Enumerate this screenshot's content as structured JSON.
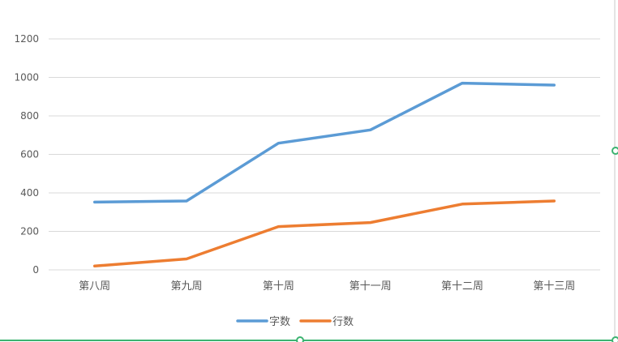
{
  "chart_data": {
    "type": "line",
    "categories": [
      "第八周",
      "第九周",
      "第十周",
      "第十一周",
      "第十二周",
      "第十三周"
    ],
    "series": [
      {
        "name": "字数",
        "color": "#5b9bd5",
        "values": [
          352,
          358,
          658,
          727,
          970,
          960
        ]
      },
      {
        "name": "行数",
        "color": "#ed7d31",
        "values": [
          20,
          57,
          225,
          246,
          342,
          358
        ]
      }
    ],
    "ylim": [
      0,
      1200
    ],
    "yticks": [
      0,
      200,
      400,
      600,
      800,
      1000,
      1200
    ],
    "ytick_labels": [
      "0",
      "200",
      "400",
      "600",
      "800",
      "1000",
      "1200"
    ],
    "grid": true,
    "legend_position": "bottom"
  },
  "colors": {
    "gridline": "#d9d9d9",
    "axis_text": "#595959",
    "frame_accent": "#3cb371",
    "frame_border": "#c0c0c0"
  }
}
